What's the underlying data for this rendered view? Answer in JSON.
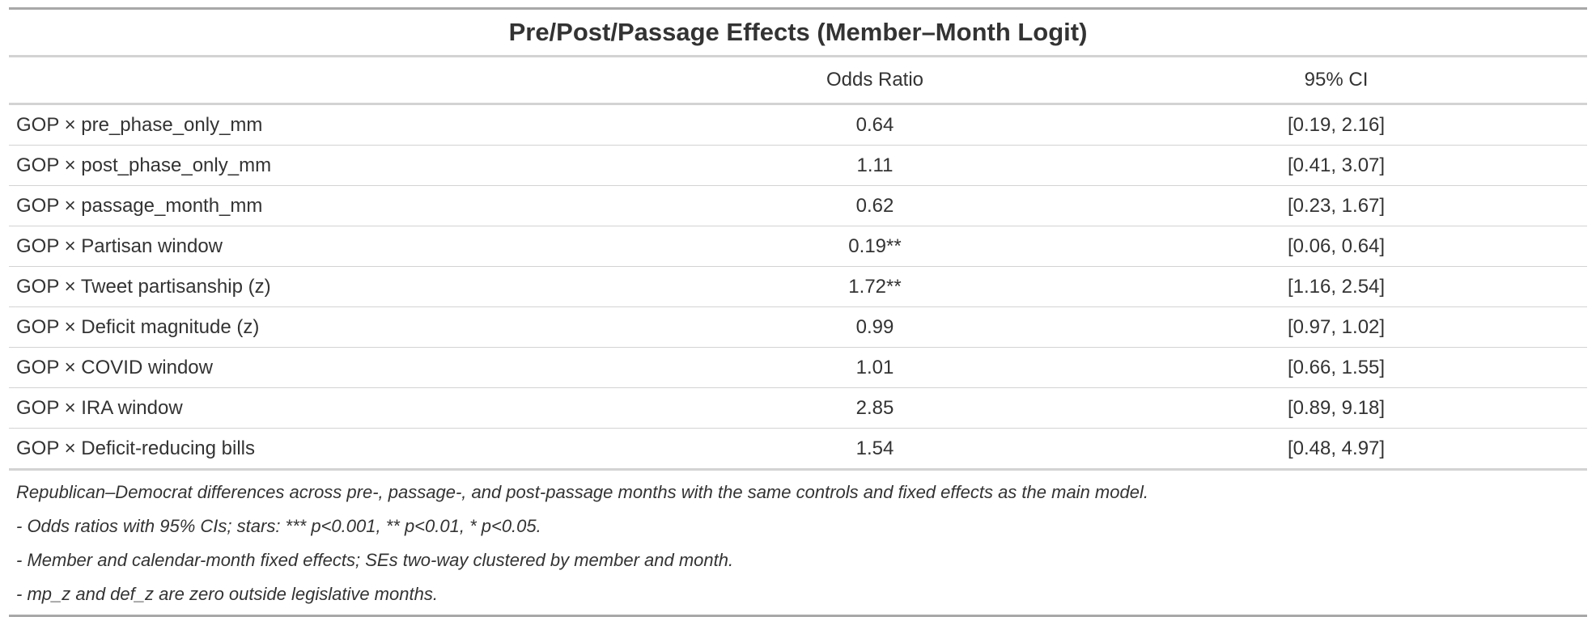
{
  "table": {
    "title": "Pre/Post/Passage Effects (Member–Month Logit)",
    "columns": [
      "",
      "Odds Ratio",
      "95% CI"
    ],
    "rows": [
      {
        "term": "GOP × pre_phase_only_mm",
        "odds_ratio": "0.64",
        "ci": "[0.19, 2.16]"
      },
      {
        "term": "GOP × post_phase_only_mm",
        "odds_ratio": "1.11",
        "ci": "[0.41, 3.07]"
      },
      {
        "term": "GOP × passage_month_mm",
        "odds_ratio": "0.62",
        "ci": "[0.23, 1.67]"
      },
      {
        "term": "GOP × Partisan window",
        "odds_ratio": "0.19**",
        "ci": "[0.06, 0.64]"
      },
      {
        "term": "GOP × Tweet partisanship (z)",
        "odds_ratio": "1.72**",
        "ci": "[1.16, 2.54]"
      },
      {
        "term": "GOP × Deficit magnitude (z)",
        "odds_ratio": "0.99",
        "ci": "[0.97, 1.02]"
      },
      {
        "term": "GOP × COVID window",
        "odds_ratio": "1.01",
        "ci": "[0.66, 1.55]"
      },
      {
        "term": "GOP × IRA window",
        "odds_ratio": "2.85",
        "ci": "[0.89, 9.18]"
      },
      {
        "term": "GOP × Deficit-reducing bills",
        "odds_ratio": "1.54",
        "ci": "[0.48, 4.97]"
      }
    ],
    "notes": [
      "Republican–Democrat differences across pre-, passage-, and post-passage months with the same controls and fixed effects as the main model.",
      "- Odds ratios with 95% CIs; stars: *** p<0.001, ** p<0.01, * p<0.05.",
      "- Member and calendar-month fixed effects; SEs two-way clustered by member and month.",
      "- mp_z and def_z are zero outside legislative months."
    ]
  }
}
